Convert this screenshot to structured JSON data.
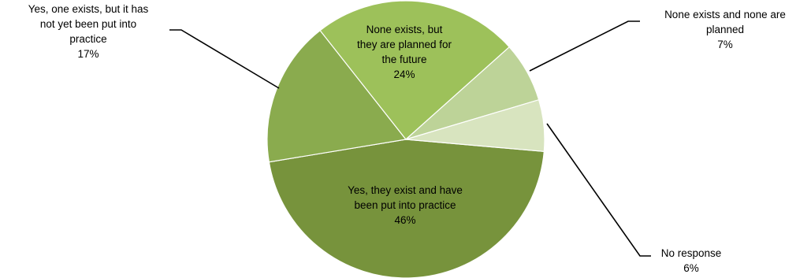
{
  "chart_data": {
    "type": "pie",
    "title": "",
    "slices": [
      {
        "label": "Yes, they exist and have been put into practice",
        "value": 46,
        "value_label": "46%",
        "color": "#77933c",
        "label_lines": [
          "Yes, they exist and have",
          "been put into practice"
        ]
      },
      {
        "label": "Yes, one exists, but it has not yet been put into practice",
        "value": 17,
        "value_label": "17%",
        "color": "#8aab4e",
        "label_lines": [
          "Yes, one exists, but it has",
          "not yet been put into",
          "practice"
        ]
      },
      {
        "label": "None exists, but they are planned for the future",
        "value": 24,
        "value_label": "24%",
        "color": "#9dc15a",
        "label_lines": [
          "None exists, but",
          "they are planned for",
          "the future"
        ]
      },
      {
        "label": "None exists and none are planned",
        "value": 7,
        "value_label": "7%",
        "color": "#bdd398",
        "label_lines": [
          "None exists and none are",
          "planned"
        ]
      },
      {
        "label": "No response",
        "value": 6,
        "value_label": "6%",
        "color": "#d8e4bf",
        "label_lines": [
          "No response"
        ]
      }
    ],
    "start_angle_deg": 95,
    "direction": "clockwise",
    "legend": "none"
  }
}
